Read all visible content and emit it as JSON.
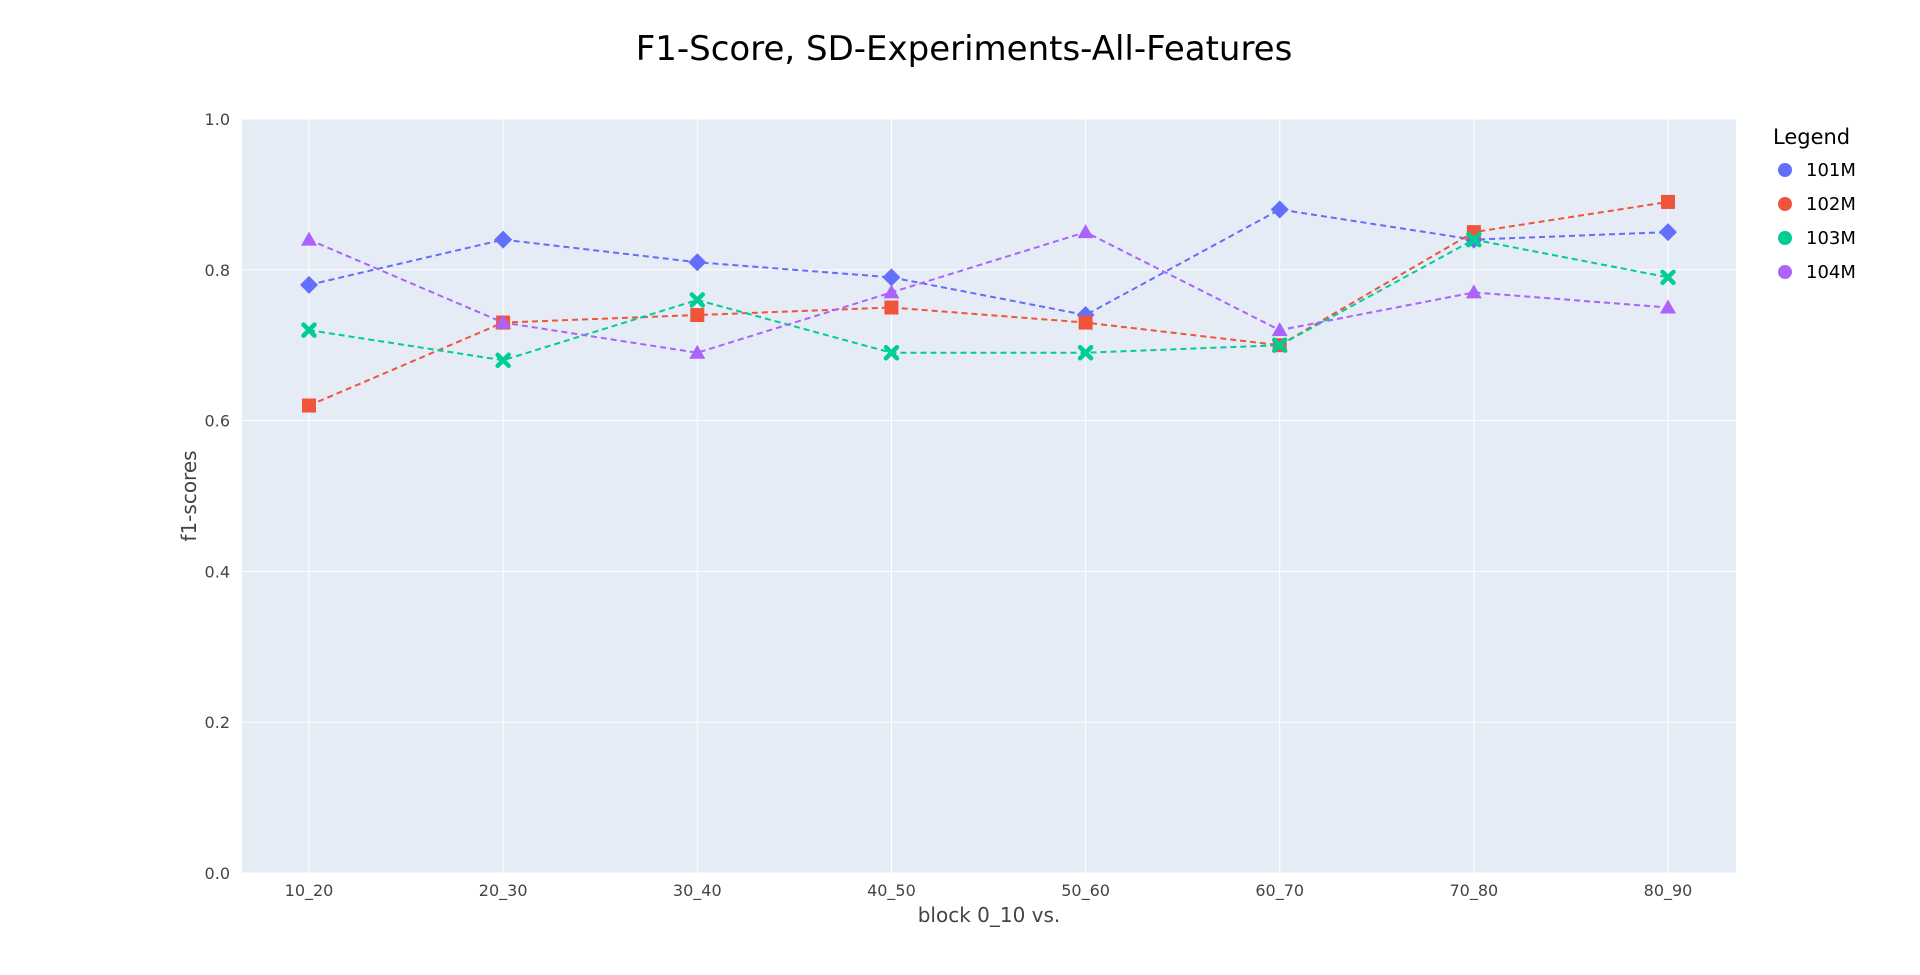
{
  "chart_data": {
    "type": "line",
    "title": "F1-Score, SD-Experiments-All-Features",
    "xlabel": "block 0_10 vs.",
    "ylabel": "f1-scores",
    "categories": [
      "10_20",
      "20_30",
      "30_40",
      "40_50",
      "50_60",
      "60_70",
      "70_80",
      "80_90"
    ],
    "ylim": [
      0,
      1
    ],
    "yticks": [
      "0.0",
      "0.2",
      "0.4",
      "0.6",
      "0.8",
      "1.0"
    ],
    "grid": true,
    "line_style": "dashed",
    "legend": {
      "title": "Legend",
      "position": "right"
    },
    "series": [
      {
        "name": "101M",
        "color": "#636efa",
        "marker": "diamond",
        "values": [
          0.78,
          0.84,
          0.81,
          0.79,
          0.74,
          0.88,
          0.84,
          0.85
        ]
      },
      {
        "name": "102M",
        "color": "#ef553b",
        "marker": "square",
        "values": [
          0.62,
          0.73,
          0.74,
          0.75,
          0.73,
          0.7,
          0.85,
          0.89
        ]
      },
      {
        "name": "103M",
        "color": "#00cc96",
        "marker": "x",
        "values": [
          0.72,
          0.68,
          0.76,
          0.69,
          0.69,
          0.7,
          0.84,
          0.79
        ]
      },
      {
        "name": "104M",
        "color": "#ab63fa",
        "marker": "triangle-up",
        "values": [
          0.84,
          0.73,
          0.69,
          0.77,
          0.85,
          0.72,
          0.77,
          0.75
        ]
      }
    ]
  }
}
